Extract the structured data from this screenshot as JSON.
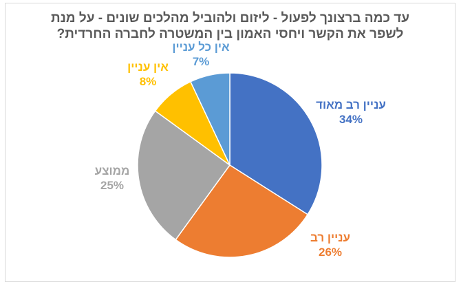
{
  "chart_data": {
    "type": "pie",
    "title_lines": [
      "עד כמה ברצונך לפעול - ליזום ולהוביל מהלכים שונים - על מנת",
      "לשפר את הקשר ויחסי האמון בין המשטרה לחברה החרדית?"
    ],
    "categories": [
      "עניין רב מאוד",
      "עניין רב",
      "ממוצע",
      "אין עניין",
      "אין כל עניין"
    ],
    "values": [
      34,
      26,
      25,
      8,
      7
    ],
    "percent_labels": [
      "34%",
      "26%",
      "25%",
      "8%",
      "7%"
    ],
    "colors": [
      "#4472C4",
      "#ED7D31",
      "#A5A5A5",
      "#FFC000",
      "#5B9BD5"
    ],
    "slice_border_color": "#ffffff",
    "legend": "none"
  }
}
